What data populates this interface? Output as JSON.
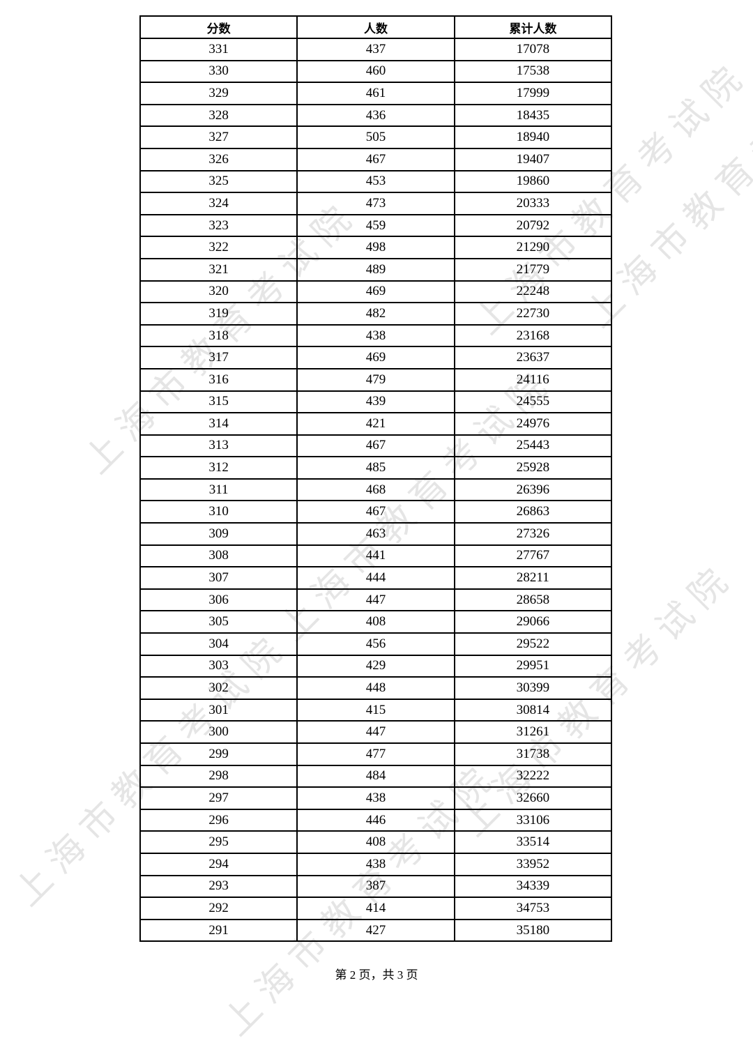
{
  "watermark": "上海市教育考试院",
  "table": {
    "headers": [
      "分数",
      "人数",
      "累计人数"
    ],
    "rows": [
      [
        "331",
        "437",
        "17078"
      ],
      [
        "330",
        "460",
        "17538"
      ],
      [
        "329",
        "461",
        "17999"
      ],
      [
        "328",
        "436",
        "18435"
      ],
      [
        "327",
        "505",
        "18940"
      ],
      [
        "326",
        "467",
        "19407"
      ],
      [
        "325",
        "453",
        "19860"
      ],
      [
        "324",
        "473",
        "20333"
      ],
      [
        "323",
        "459",
        "20792"
      ],
      [
        "322",
        "498",
        "21290"
      ],
      [
        "321",
        "489",
        "21779"
      ],
      [
        "320",
        "469",
        "22248"
      ],
      [
        "319",
        "482",
        "22730"
      ],
      [
        "318",
        "438",
        "23168"
      ],
      [
        "317",
        "469",
        "23637"
      ],
      [
        "316",
        "479",
        "24116"
      ],
      [
        "315",
        "439",
        "24555"
      ],
      [
        "314",
        "421",
        "24976"
      ],
      [
        "313",
        "467",
        "25443"
      ],
      [
        "312",
        "485",
        "25928"
      ],
      [
        "311",
        "468",
        "26396"
      ],
      [
        "310",
        "467",
        "26863"
      ],
      [
        "309",
        "463",
        "27326"
      ],
      [
        "308",
        "441",
        "27767"
      ],
      [
        "307",
        "444",
        "28211"
      ],
      [
        "306",
        "447",
        "28658"
      ],
      [
        "305",
        "408",
        "29066"
      ],
      [
        "304",
        "456",
        "29522"
      ],
      [
        "303",
        "429",
        "29951"
      ],
      [
        "302",
        "448",
        "30399"
      ],
      [
        "301",
        "415",
        "30814"
      ],
      [
        "300",
        "447",
        "31261"
      ],
      [
        "299",
        "477",
        "31738"
      ],
      [
        "298",
        "484",
        "32222"
      ],
      [
        "297",
        "438",
        "32660"
      ],
      [
        "296",
        "446",
        "33106"
      ],
      [
        "295",
        "408",
        "33514"
      ],
      [
        "294",
        "438",
        "33952"
      ],
      [
        "293",
        "387",
        "34339"
      ],
      [
        "292",
        "414",
        "34753"
      ],
      [
        "291",
        "427",
        "35180"
      ]
    ]
  },
  "footer": "第 2 页，共 3 页"
}
